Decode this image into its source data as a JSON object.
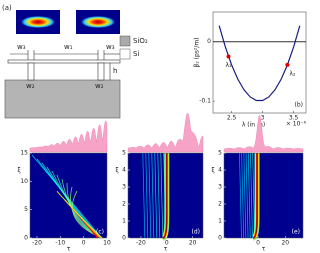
{
  "panel_label": "(a)",
  "schematic": {
    "labels": [
      "w₃",
      "w₁",
      "w₃",
      "w₂",
      "w₂",
      "h"
    ],
    "legend": [
      "SiO₂",
      "Si"
    ]
  },
  "chart_data": [
    {
      "type": "line",
      "panel_label": "(b)",
      "ylabel": "β₂ (ps²/m)",
      "xlabel": "λ (in m)",
      "x_multiplier": "× 10⁻⁶",
      "x": [
        2.3,
        2.4,
        2.5,
        2.6,
        2.7,
        2.8,
        2.9,
        3.0,
        3.1,
        3.2,
        3.3,
        3.4,
        3.5,
        3.6
      ],
      "series": [
        {
          "color": "#1c1c80",
          "values": [
            0.027,
            -0.009,
            -0.039,
            -0.063,
            -0.081,
            -0.093,
            -0.099,
            -0.099,
            -0.093,
            -0.081,
            -0.063,
            -0.039,
            -0.009,
            0.027
          ]
        }
      ],
      "points": {
        "labels": [
          "λ₁",
          "λ₂"
        ],
        "x": [
          2.45,
          3.4
        ],
        "values": [
          -0.025,
          -0.039
        ],
        "color": "#e00000"
      },
      "reference_line": 0,
      "xlim": [
        2.2,
        3.7
      ],
      "ylim": [
        -0.12,
        0.05
      ],
      "xticks": [
        2.5,
        3,
        3.5
      ],
      "yticks": [
        -0.1,
        0
      ]
    },
    {
      "type": "heatmap",
      "panel_label": "(c)",
      "xlabel": "τ",
      "ylabel": "ξ",
      "xlim": [
        -23,
        10
      ],
      "ylim": [
        0,
        15
      ],
      "xticks": [
        -20,
        -10,
        0,
        10
      ],
      "yticks": [
        0,
        5,
        10,
        15
      ]
    },
    {
      "type": "heatmap",
      "panel_label": "(d)",
      "xlabel": "τ",
      "ylabel": "ξ",
      "xlim": [
        -30,
        28
      ],
      "ylim": [
        0,
        5
      ],
      "xticks": [
        -20,
        0,
        20
      ],
      "yticks": [
        0,
        1,
        2,
        3,
        4,
        5
      ]
    },
    {
      "type": "heatmap",
      "panel_label": "(e)",
      "xlabel": "τ",
      "ylabel": "ξ",
      "xlim": [
        -25,
        33
      ],
      "ylim": [
        0,
        5
      ],
      "xticks": [
        0,
        20
      ],
      "yticks": [
        0,
        1,
        2,
        3,
        4,
        5
      ]
    }
  ]
}
